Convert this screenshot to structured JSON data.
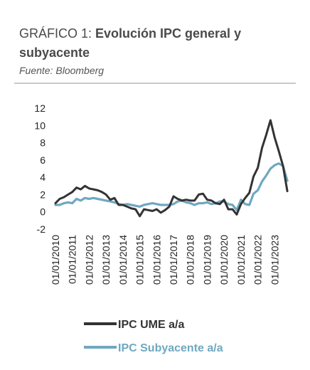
{
  "header": {
    "title_prefix": "GRÁFICO 1: ",
    "title_main": "Evolución IPC general y subyacente",
    "source": "Fuente: Bloomberg"
  },
  "colors": {
    "general": "#333333",
    "core": "#6fa8c0",
    "rule": "#c9c9c9"
  },
  "chart_data": {
    "type": "line",
    "title": "",
    "xlabel": "",
    "ylabel": "",
    "ylim": [
      -2,
      12
    ],
    "yticks": [
      -2,
      0,
      2,
      4,
      6,
      8,
      10,
      12
    ],
    "xticks": [
      "01/01/2010",
      "01/01/2011",
      "01/01/2012",
      "01/01/2013",
      "01/01/2014",
      "01/01/2015",
      "01/01/2016",
      "01/01/2017",
      "01/01/2018",
      "01/01/2019",
      "01/01/2020",
      "01/01/2021",
      "01/01/2022",
      "01/01/2023"
    ],
    "grid": false,
    "legend_position": "bottom",
    "series": [
      {
        "name": "IPC UME a/a",
        "color": "#333333",
        "x": [
          2010.0,
          2010.25,
          2010.5,
          2010.75,
          2011.0,
          2011.25,
          2011.5,
          2011.75,
          2012.0,
          2012.25,
          2012.5,
          2012.75,
          2013.0,
          2013.25,
          2013.5,
          2013.75,
          2014.0,
          2014.25,
          2014.5,
          2014.75,
          2015.0,
          2015.25,
          2015.5,
          2015.75,
          2016.0,
          2016.25,
          2016.5,
          2016.75,
          2017.0,
          2017.25,
          2017.5,
          2017.75,
          2018.0,
          2018.25,
          2018.5,
          2018.75,
          2019.0,
          2019.25,
          2019.5,
          2019.75,
          2020.0,
          2020.25,
          2020.5,
          2020.75,
          2021.0,
          2021.25,
          2021.5,
          2021.75,
          2022.0,
          2022.25,
          2022.5,
          2022.75,
          2023.0,
          2023.25,
          2023.5,
          2023.75
        ],
        "y": [
          1.0,
          1.5,
          1.7,
          2.0,
          2.3,
          2.8,
          2.6,
          3.0,
          2.7,
          2.6,
          2.5,
          2.3,
          2.0,
          1.4,
          1.6,
          0.8,
          0.8,
          0.6,
          0.4,
          0.3,
          -0.5,
          0.3,
          0.2,
          0.1,
          0.3,
          -0.1,
          0.2,
          0.6,
          1.8,
          1.5,
          1.3,
          1.4,
          1.3,
          1.3,
          2.0,
          2.1,
          1.4,
          1.3,
          1.0,
          0.9,
          1.4,
          0.3,
          0.3,
          -0.3,
          0.9,
          1.6,
          2.2,
          4.1,
          5.1,
          7.4,
          8.9,
          10.6,
          8.6,
          7.0,
          5.3,
          2.4
        ]
      },
      {
        "name": "IPC Subyacente a/a",
        "color": "#6fa8c0",
        "x": [
          2010.0,
          2010.25,
          2010.5,
          2010.75,
          2011.0,
          2011.25,
          2011.5,
          2011.75,
          2012.0,
          2012.25,
          2012.5,
          2012.75,
          2013.0,
          2013.25,
          2013.5,
          2013.75,
          2014.0,
          2014.25,
          2014.5,
          2014.75,
          2015.0,
          2015.25,
          2015.5,
          2015.75,
          2016.0,
          2016.25,
          2016.5,
          2016.75,
          2017.0,
          2017.25,
          2017.5,
          2017.75,
          2018.0,
          2018.25,
          2018.5,
          2018.75,
          2019.0,
          2019.25,
          2019.5,
          2019.75,
          2020.0,
          2020.25,
          2020.5,
          2020.75,
          2021.0,
          2021.25,
          2021.5,
          2021.75,
          2022.0,
          2022.25,
          2022.5,
          2022.75,
          2023.0,
          2023.25,
          2023.5,
          2023.75
        ],
        "y": [
          0.8,
          0.8,
          1.0,
          1.1,
          1.0,
          1.5,
          1.3,
          1.6,
          1.5,
          1.6,
          1.5,
          1.4,
          1.3,
          1.2,
          1.1,
          0.9,
          0.8,
          0.9,
          0.8,
          0.7,
          0.6,
          0.8,
          0.9,
          1.0,
          0.9,
          0.8,
          0.8,
          0.8,
          0.9,
          1.2,
          1.3,
          1.1,
          1.0,
          0.8,
          1.0,
          1.0,
          1.1,
          0.9,
          1.0,
          1.2,
          1.2,
          0.9,
          0.8,
          0.2,
          1.4,
          0.9,
          0.8,
          2.1,
          2.5,
          3.5,
          4.2,
          5.0,
          5.4,
          5.6,
          5.3,
          3.6
        ]
      }
    ]
  }
}
